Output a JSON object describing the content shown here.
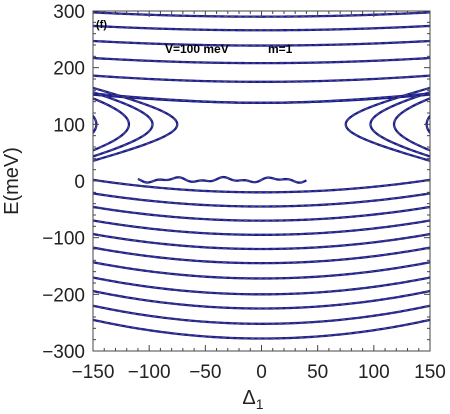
{
  "chart_data": {
    "type": "line",
    "panel_label": "(f)",
    "annotations": [
      "V=100 meV",
      "m=1"
    ],
    "xlabel": "Δ",
    "xlabel_sub": "1",
    "ylabel": "E(meV)",
    "xlim": [
      -150,
      150
    ],
    "ylim": [
      -300,
      300
    ],
    "xticks": [
      -150,
      -100,
      -50,
      0,
      50,
      100,
      150
    ],
    "yticks": [
      -300,
      -200,
      -100,
      0,
      100,
      200,
      300
    ],
    "xtick_labels": [
      "−150",
      "−100",
      "−50",
      "0",
      "50",
      "100",
      "150"
    ],
    "ytick_labels": [
      "−300",
      "−200",
      "−100",
      "0",
      "100",
      "200",
      "300"
    ],
    "grid": false,
    "colors": {
      "solid": "#1a1a9e",
      "dashed": "#555555",
      "frame": "#444444"
    },
    "description_of_series": "Energy levels E(Δ) symmetric in Δ; each level drawn as a solid blue curve overlaid with a dashed gray curve.",
    "upper_levels_E_at_0": [
      62,
      138,
      175,
      208,
      239,
      266,
      290
    ],
    "upper_levels_curvature_scale": 34,
    "side_branches": {
      "center_E": 100,
      "vertex_delta": [
        147,
        118,
        97,
        75
      ],
      "curvature": 0.35
    },
    "lower_levels_E_at_0": [
      -20,
      -45,
      -70,
      -95,
      -120,
      -145,
      -172,
      -200,
      -225,
      -252,
      -278
    ],
    "lower_levels_tilt_at_150": 22,
    "level_zero_wiggle": {
      "E": 2,
      "delta_range": [
        -110,
        40
      ]
    }
  }
}
